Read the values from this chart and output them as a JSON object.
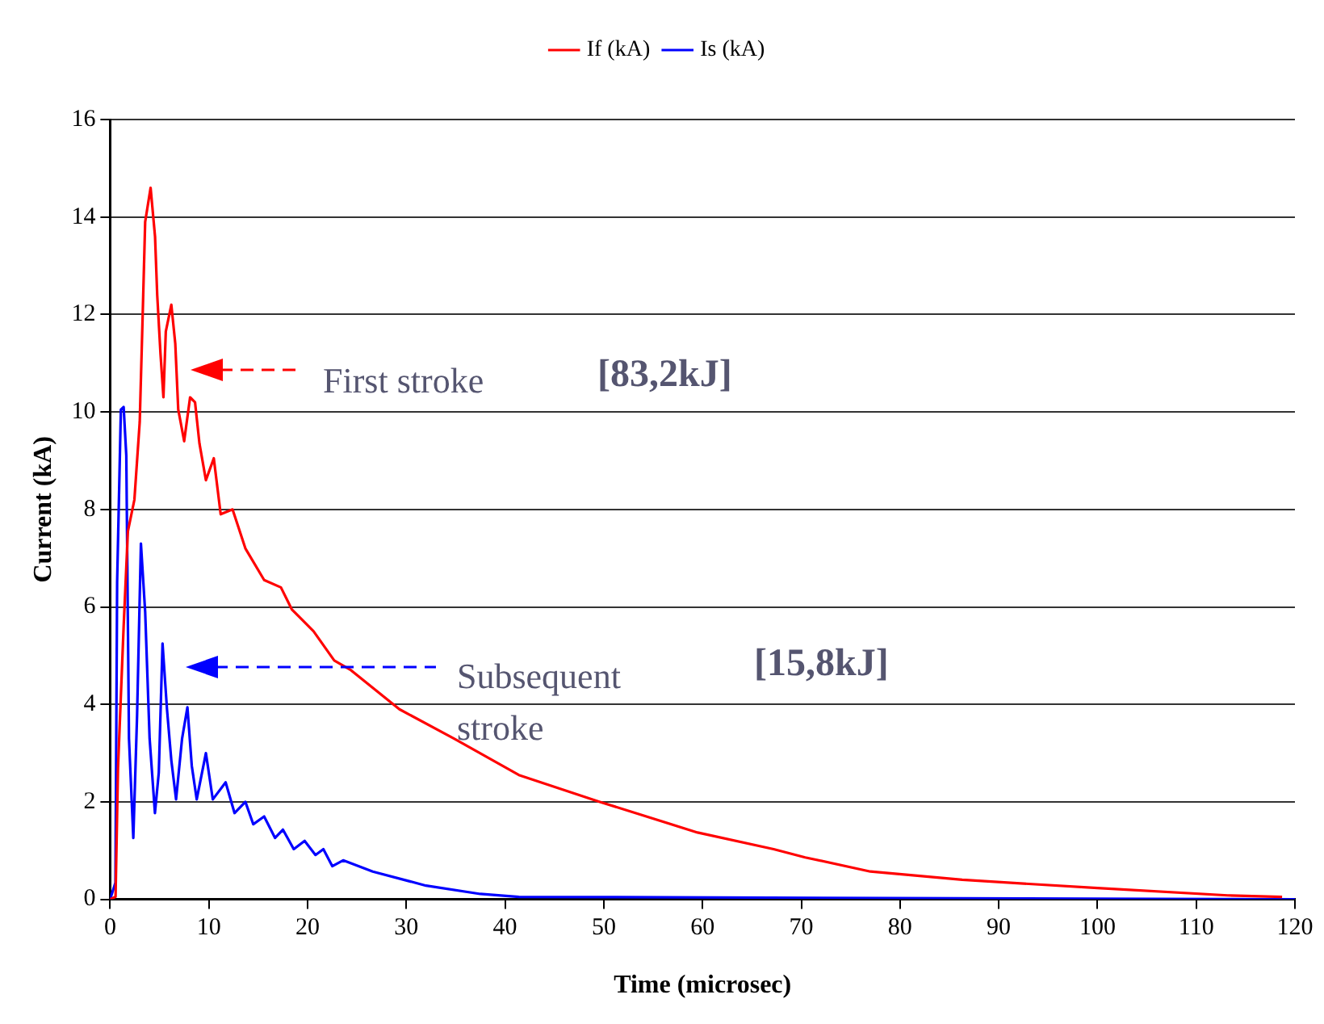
{
  "chart_data": {
    "type": "line",
    "xlabel": "Time (microsec)",
    "ylabel": "Current (kA)",
    "xlim": [
      0,
      120
    ],
    "xticks": [
      0,
      10,
      20,
      30,
      40,
      50,
      60,
      70,
      80,
      90,
      100,
      110,
      120
    ],
    "ylim": [
      0,
      16
    ],
    "yticks": [
      0,
      2,
      4,
      6,
      8,
      10,
      12,
      14,
      16
    ],
    "grid": "y",
    "legend": "top",
    "marker": "none",
    "line_style": "solid",
    "series": [
      {
        "name": "If (kA)",
        "color": "#ff0000",
        "x": [
          0,
          0.55,
          0.8,
          1.37,
          1.8,
          2.46,
          3.0,
          3.3,
          3.55,
          4.1,
          4.55,
          4.77,
          5.1,
          5.4,
          5.64,
          6.2,
          6.6,
          6.9,
          7.5,
          8.1,
          8.6,
          9.05,
          9.7,
          10.5,
          11.2,
          12.4,
          13.7,
          15.6,
          17.3,
          18.4,
          20.6,
          22.7,
          24.4,
          29.3,
          34.8,
          41.4,
          49.6,
          59.5,
          67.2,
          70.4,
          77,
          86.3,
          100,
          113.2,
          118.7
        ],
        "values": [
          0,
          0.05,
          2.7,
          5.6,
          7.55,
          8.2,
          9.8,
          12,
          13.9,
          14.6,
          13.6,
          12.4,
          11.2,
          10.3,
          11.65,
          12.2,
          11.4,
          10.05,
          9.4,
          10.3,
          10.2,
          9.35,
          8.6,
          9.05,
          7.9,
          8.0,
          7.2,
          6.55,
          6.4,
          5.95,
          5.5,
          4.9,
          4.7,
          3.9,
          3.3,
          2.55,
          2.0,
          1.37,
          1.03,
          0.86,
          0.57,
          0.4,
          0.23,
          0.08,
          0.05
        ]
      },
      {
        "name": "Is (kA)",
        "color": "#0000ff",
        "x": [
          0,
          0.54,
          0.71,
          1.09,
          1.37,
          1.64,
          1.91,
          2.35,
          2.73,
          3.12,
          3.55,
          4.0,
          4.54,
          4.93,
          5.31,
          5.76,
          6.2,
          6.68,
          7.29,
          7.83,
          8.27,
          8.77,
          9.7,
          10.4,
          11.7,
          12.6,
          13.7,
          14.5,
          15.6,
          16.7,
          17.5,
          18.6,
          19.7,
          20.8,
          21.6,
          22.5,
          23.6,
          26.6,
          32,
          37.5,
          41.4,
          120
        ],
        "values": [
          0,
          0.34,
          6.5,
          10.05,
          10.1,
          9.1,
          3.3,
          1.26,
          3.77,
          7.3,
          5.9,
          3.3,
          1.77,
          2.6,
          5.25,
          3.9,
          2.85,
          2.05,
          3.3,
          3.94,
          2.74,
          2.05,
          3.0,
          2.05,
          2.4,
          1.77,
          2.0,
          1.54,
          1.7,
          1.26,
          1.43,
          1.03,
          1.2,
          0.91,
          1.03,
          0.68,
          0.8,
          0.57,
          0.28,
          0.11,
          0.05,
          0
        ]
      }
    ],
    "annotations": [
      "First stroke",
      "Subsequent stroke",
      "[83,2kJ]",
      "[15,8kJ]"
    ]
  }
}
